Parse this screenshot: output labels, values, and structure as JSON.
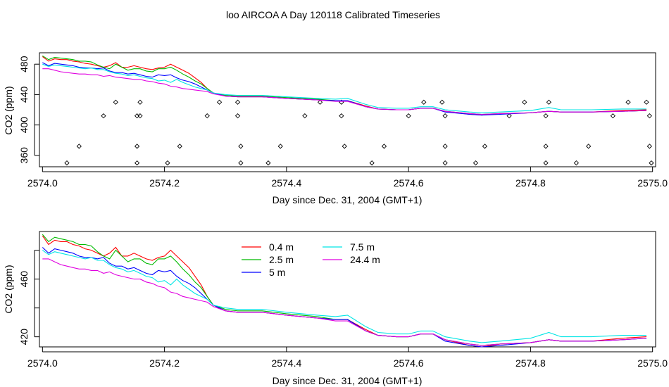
{
  "title": "loo AIRCOA A  Day 120118  Calibrated Timeseries",
  "chart_data": [
    {
      "type": "line",
      "panel": "top",
      "xlabel": "Day since Dec. 31, 2004 (GMT+1)",
      "ylabel": "CO2 (ppm)",
      "xlim": [
        2573.995,
        2575.005
      ],
      "ylim": [
        345,
        495
      ],
      "xticks": [
        2574.0,
        2574.2,
        2574.4,
        2574.6,
        2574.8,
        2575.0
      ],
      "xtick_labels": [
        "2574.0",
        "2574.2",
        "2574.4",
        "2574.6",
        "2574.8",
        "2575.0"
      ],
      "yticks": [
        360,
        400,
        440,
        480
      ],
      "ytick_labels": [
        "360",
        "400",
        "440",
        "480"
      ],
      "legend": "none",
      "flag_points": {
        "x": [
          2574.04,
          2574.06,
          2574.1,
          2574.12,
          2574.155,
          2574.155,
          2574.155,
          2574.16,
          2574.16,
          2574.205,
          2574.225,
          2574.27,
          2574.29,
          2574.32,
          2574.32,
          2574.325,
          2574.325,
          2574.37,
          2574.39,
          2574.43,
          2574.455,
          2574.49,
          2574.49,
          2574.495,
          2574.54,
          2574.56,
          2574.6,
          2574.625,
          2574.655,
          2574.66,
          2574.66,
          2574.66,
          2574.71,
          2574.725,
          2574.765,
          2574.79,
          2574.825,
          2574.825,
          2574.825,
          2574.83,
          2574.875,
          2574.895,
          2574.935,
          2574.96,
          2574.99,
          2574.995,
          2574.995,
          2574.998
        ],
        "y": [
          350,
          372,
          412,
          430,
          350,
          372,
          412,
          430,
          412,
          350,
          372,
          412,
          430,
          430,
          412,
          372,
          350,
          350,
          372,
          412,
          430,
          430,
          412,
          372,
          350,
          372,
          412,
          430,
          430,
          412,
          372,
          350,
          350,
          372,
          412,
          430,
          412,
          372,
          350,
          430,
          350,
          372,
          412,
          430,
          430,
          412,
          372,
          350
        ]
      }
    },
    {
      "type": "line",
      "panel": "bottom",
      "xlabel": "Day since Dec. 31, 2004 (GMT+1)",
      "ylabel": "CO2 (ppm)",
      "xlim": [
        2573.995,
        2575.005
      ],
      "ylim": [
        413,
        493
      ],
      "xticks": [
        2574.0,
        2574.2,
        2574.4,
        2574.6,
        2574.8,
        2575.0
      ],
      "xtick_labels": [
        "2574.0",
        "2574.2",
        "2574.4",
        "2574.6",
        "2574.8",
        "2575.0"
      ],
      "yticks": [
        420,
        440,
        460,
        480
      ],
      "ytick_labels": [
        "420",
        "",
        "460",
        ""
      ],
      "legend": "top-left-center",
      "legend_entries": [
        {
          "label": "0.4 m",
          "color": "#ff0000"
        },
        {
          "label": "2.5 m",
          "color": "#00bb00"
        },
        {
          "label": "5 m",
          "color": "#0000ff"
        },
        {
          "label": "7.5 m",
          "color": "#00e5e5"
        },
        {
          "label": "24.4 m",
          "color": "#e000e0"
        }
      ]
    }
  ],
  "series": [
    {
      "name": "0.4 m",
      "color": "#ff0000",
      "anchors": [
        [
          2574.0,
          490
        ],
        [
          2574.01,
          484
        ],
        [
          2574.02,
          487
        ],
        [
          2574.03,
          486
        ],
        [
          2574.04,
          486
        ],
        [
          2574.05,
          484
        ],
        [
          2574.06,
          483
        ],
        [
          2574.07,
          481
        ],
        [
          2574.08,
          480
        ],
        [
          2574.09,
          478
        ],
        [
          2574.1,
          476
        ],
        [
          2574.11,
          478
        ],
        [
          2574.12,
          482
        ],
        [
          2574.13,
          476
        ],
        [
          2574.14,
          476
        ],
        [
          2574.15,
          478
        ],
        [
          2574.16,
          476
        ],
        [
          2574.17,
          474
        ],
        [
          2574.18,
          473
        ],
        [
          2574.19,
          475
        ],
        [
          2574.2,
          476
        ],
        [
          2574.21,
          480
        ],
        [
          2574.22,
          476
        ],
        [
          2574.23,
          472
        ],
        [
          2574.24,
          468
        ],
        [
          2574.25,
          462
        ],
        [
          2574.26,
          456
        ],
        [
          2574.27,
          448
        ],
        [
          2574.28,
          442
        ],
        [
          2574.3,
          438
        ],
        [
          2574.32,
          437
        ],
        [
          2574.36,
          437
        ],
        [
          2574.4,
          435
        ],
        [
          2574.45,
          433
        ],
        [
          2574.48,
          432
        ],
        [
          2574.5,
          432
        ],
        [
          2574.53,
          425
        ],
        [
          2574.55,
          421
        ],
        [
          2574.58,
          420
        ],
        [
          2574.6,
          420
        ],
        [
          2574.62,
          422
        ],
        [
          2574.64,
          422
        ],
        [
          2574.66,
          418
        ],
        [
          2574.7,
          414
        ],
        [
          2574.72,
          413
        ],
        [
          2574.75,
          415
        ],
        [
          2574.8,
          416
        ],
        [
          2574.83,
          418
        ],
        [
          2574.85,
          417
        ],
        [
          2574.9,
          417
        ],
        [
          2574.95,
          419
        ],
        [
          2574.99,
          420
        ]
      ]
    },
    {
      "name": "2.5 m",
      "color": "#00bb00",
      "anchors": [
        [
          2574.0,
          491
        ],
        [
          2574.01,
          486
        ],
        [
          2574.02,
          489
        ],
        [
          2574.03,
          488
        ],
        [
          2574.04,
          487
        ],
        [
          2574.05,
          486
        ],
        [
          2574.06,
          484
        ],
        [
          2574.07,
          484
        ],
        [
          2574.08,
          483
        ],
        [
          2574.09,
          479
        ],
        [
          2574.1,
          476
        ],
        [
          2574.11,
          474
        ],
        [
          2574.12,
          480
        ],
        [
          2574.13,
          476
        ],
        [
          2574.14,
          472
        ],
        [
          2574.15,
          474
        ],
        [
          2574.16,
          474
        ],
        [
          2574.17,
          471
        ],
        [
          2574.18,
          470
        ],
        [
          2574.19,
          474
        ],
        [
          2574.2,
          474
        ],
        [
          2574.21,
          476
        ],
        [
          2574.22,
          472
        ],
        [
          2574.23,
          467
        ],
        [
          2574.24,
          463
        ],
        [
          2574.25,
          458
        ],
        [
          2574.26,
          454
        ],
        [
          2574.27,
          448
        ],
        [
          2574.28,
          442
        ],
        [
          2574.3,
          439
        ],
        [
          2574.32,
          438
        ],
        [
          2574.36,
          438
        ],
        [
          2574.4,
          436
        ],
        [
          2574.45,
          434
        ],
        [
          2574.48,
          432
        ],
        [
          2574.5,
          432
        ],
        [
          2574.53,
          424
        ],
        [
          2574.55,
          421
        ],
        [
          2574.58,
          420
        ],
        [
          2574.6,
          420
        ],
        [
          2574.62,
          422
        ],
        [
          2574.64,
          422
        ],
        [
          2574.66,
          418
        ],
        [
          2574.7,
          415
        ],
        [
          2574.72,
          414
        ],
        [
          2574.75,
          415
        ],
        [
          2574.8,
          416
        ],
        [
          2574.83,
          418
        ],
        [
          2574.85,
          417
        ],
        [
          2574.9,
          417
        ],
        [
          2574.95,
          418
        ],
        [
          2574.99,
          419
        ]
      ]
    },
    {
      "name": "5 m",
      "color": "#0000ff",
      "anchors": [
        [
          2574.0,
          482
        ],
        [
          2574.01,
          478
        ],
        [
          2574.02,
          481
        ],
        [
          2574.03,
          480
        ],
        [
          2574.04,
          479
        ],
        [
          2574.05,
          478
        ],
        [
          2574.06,
          476
        ],
        [
          2574.07,
          475
        ],
        [
          2574.08,
          475
        ],
        [
          2574.09,
          474
        ],
        [
          2574.1,
          475
        ],
        [
          2574.11,
          471
        ],
        [
          2574.12,
          469
        ],
        [
          2574.13,
          469
        ],
        [
          2574.14,
          467
        ],
        [
          2574.15,
          468
        ],
        [
          2574.16,
          466
        ],
        [
          2574.17,
          464
        ],
        [
          2574.18,
          463
        ],
        [
          2574.19,
          466
        ],
        [
          2574.2,
          465
        ],
        [
          2574.21,
          466
        ],
        [
          2574.22,
          462
        ],
        [
          2574.23,
          459
        ],
        [
          2574.24,
          457
        ],
        [
          2574.25,
          454
        ],
        [
          2574.26,
          450
        ],
        [
          2574.27,
          446
        ],
        [
          2574.28,
          442
        ],
        [
          2574.3,
          438
        ],
        [
          2574.32,
          437
        ],
        [
          2574.36,
          437
        ],
        [
          2574.4,
          435
        ],
        [
          2574.45,
          433
        ],
        [
          2574.48,
          432
        ],
        [
          2574.5,
          432
        ],
        [
          2574.53,
          424
        ],
        [
          2574.55,
          421
        ],
        [
          2574.58,
          420
        ],
        [
          2574.6,
          420
        ],
        [
          2574.62,
          422
        ],
        [
          2574.64,
          422
        ],
        [
          2574.66,
          417
        ],
        [
          2574.7,
          414
        ],
        [
          2574.72,
          413
        ],
        [
          2574.75,
          414
        ],
        [
          2574.8,
          416
        ],
        [
          2574.83,
          418
        ],
        [
          2574.85,
          417
        ],
        [
          2574.9,
          417
        ],
        [
          2574.95,
          418
        ],
        [
          2574.99,
          419
        ]
      ]
    },
    {
      "name": "7.5 m",
      "color": "#00e5e5",
      "anchors": [
        [
          2574.0,
          480
        ],
        [
          2574.01,
          477
        ],
        [
          2574.02,
          479
        ],
        [
          2574.03,
          478
        ],
        [
          2574.04,
          477
        ],
        [
          2574.05,
          476
        ],
        [
          2574.06,
          475
        ],
        [
          2574.07,
          474
        ],
        [
          2574.08,
          475
        ],
        [
          2574.09,
          473
        ],
        [
          2574.1,
          473
        ],
        [
          2574.11,
          470
        ],
        [
          2574.12,
          468
        ],
        [
          2574.13,
          467
        ],
        [
          2574.14,
          465
        ],
        [
          2574.15,
          466
        ],
        [
          2574.16,
          464
        ],
        [
          2574.17,
          462
        ],
        [
          2574.18,
          461
        ],
        [
          2574.19,
          458
        ],
        [
          2574.2,
          459
        ],
        [
          2574.21,
          456
        ],
        [
          2574.22,
          460
        ],
        [
          2574.23,
          456
        ],
        [
          2574.24,
          453
        ],
        [
          2574.25,
          450
        ],
        [
          2574.26,
          448
        ],
        [
          2574.27,
          446
        ],
        [
          2574.28,
          442
        ],
        [
          2574.3,
          440
        ],
        [
          2574.32,
          439
        ],
        [
          2574.36,
          439
        ],
        [
          2574.4,
          437
        ],
        [
          2574.45,
          435
        ],
        [
          2574.48,
          434
        ],
        [
          2574.5,
          435
        ],
        [
          2574.53,
          427
        ],
        [
          2574.55,
          423
        ],
        [
          2574.58,
          422
        ],
        [
          2574.6,
          422
        ],
        [
          2574.62,
          424
        ],
        [
          2574.64,
          424
        ],
        [
          2574.66,
          420
        ],
        [
          2574.7,
          417
        ],
        [
          2574.72,
          416
        ],
        [
          2574.75,
          417
        ],
        [
          2574.8,
          419
        ],
        [
          2574.83,
          423
        ],
        [
          2574.85,
          420
        ],
        [
          2574.9,
          420
        ],
        [
          2574.95,
          421
        ],
        [
          2574.99,
          421
        ]
      ]
    },
    {
      "name": "24.4 m",
      "color": "#e000e0",
      "anchors": [
        [
          2574.0,
          474
        ],
        [
          2574.01,
          474
        ],
        [
          2574.02,
          472
        ],
        [
          2574.03,
          470
        ],
        [
          2574.04,
          469
        ],
        [
          2574.05,
          468
        ],
        [
          2574.06,
          467
        ],
        [
          2574.07,
          467
        ],
        [
          2574.08,
          466
        ],
        [
          2574.09,
          466
        ],
        [
          2574.1,
          464
        ],
        [
          2574.11,
          465
        ],
        [
          2574.12,
          463
        ],
        [
          2574.13,
          462
        ],
        [
          2574.14,
          461
        ],
        [
          2574.15,
          460
        ],
        [
          2574.16,
          460
        ],
        [
          2574.17,
          458
        ],
        [
          2574.18,
          457
        ],
        [
          2574.19,
          455
        ],
        [
          2574.2,
          454
        ],
        [
          2574.21,
          451
        ],
        [
          2574.22,
          450
        ],
        [
          2574.23,
          448
        ],
        [
          2574.24,
          447
        ],
        [
          2574.25,
          446
        ],
        [
          2574.26,
          445
        ],
        [
          2574.27,
          444
        ],
        [
          2574.28,
          441
        ],
        [
          2574.3,
          438
        ],
        [
          2574.32,
          437
        ],
        [
          2574.36,
          437
        ],
        [
          2574.4,
          435
        ],
        [
          2574.45,
          433
        ],
        [
          2574.48,
          431
        ],
        [
          2574.5,
          431
        ],
        [
          2574.53,
          424
        ],
        [
          2574.55,
          421
        ],
        [
          2574.58,
          420
        ],
        [
          2574.6,
          420
        ],
        [
          2574.62,
          422
        ],
        [
          2574.64,
          422
        ],
        [
          2574.66,
          418
        ],
        [
          2574.7,
          415
        ],
        [
          2574.72,
          414
        ],
        [
          2574.75,
          415
        ],
        [
          2574.8,
          416
        ],
        [
          2574.83,
          418
        ],
        [
          2574.85,
          417
        ],
        [
          2574.9,
          417
        ],
        [
          2574.95,
          418
        ],
        [
          2574.99,
          419
        ]
      ]
    }
  ]
}
